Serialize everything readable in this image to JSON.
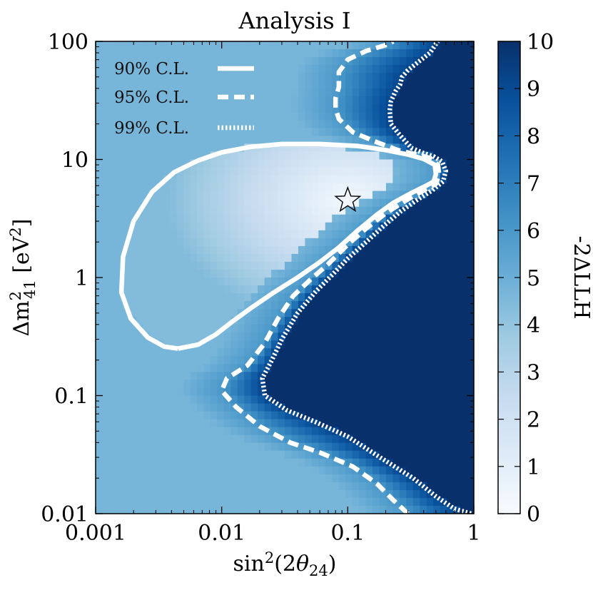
{
  "chart_data": {
    "type": "heatmap",
    "title": "Analysis I",
    "xlabel": {
      "base": "sin",
      "sup": "2",
      "arg_open": "(2",
      "theta": "θ",
      "sub": "24",
      "arg_close": ")"
    },
    "ylabel": {
      "delta": "Δ",
      "m": "m",
      "sup": "2",
      "sub": "41",
      "unit_open": " [eV",
      "unit_sup": "2",
      "unit_close": "]"
    },
    "x_scale": "log",
    "y_scale": "log",
    "xlim": [
      0.001,
      1
    ],
    "ylim": [
      0.01,
      100
    ],
    "x_ticks": [
      {
        "value": 0.001,
        "label": "0.001"
      },
      {
        "value": 0.01,
        "label": "0.01"
      },
      {
        "value": 0.1,
        "label": "0.1"
      },
      {
        "value": 1,
        "label": "1"
      }
    ],
    "y_ticks": [
      {
        "value": 0.01,
        "label": "0.01"
      },
      {
        "value": 0.1,
        "label": "0.1"
      },
      {
        "value": 1,
        "label": "1"
      },
      {
        "value": 10,
        "label": "10"
      },
      {
        "value": 100,
        "label": "100"
      }
    ],
    "colorbar": {
      "label": "-2ΔLLH",
      "range": [
        0,
        10
      ],
      "ticks": [
        "0",
        "1",
        "2",
        "3",
        "4",
        "5",
        "6",
        "7",
        "8",
        "9",
        "10"
      ],
      "colormap": [
        "#f7fbff",
        "#deebf7",
        "#c6dbef",
        "#9ecae1",
        "#6baed6",
        "#4292c6",
        "#2171b5",
        "#08519c",
        "#08306b"
      ]
    },
    "best_fit": {
      "x": 0.1,
      "y": 4.5,
      "marker": "star"
    },
    "legend": {
      "position": "top-left",
      "entries": [
        {
          "label": "90% C.L.",
          "style": "solid"
        },
        {
          "label": "95% C.L.",
          "style": "dashed"
        },
        {
          "label": "99% C.L.",
          "style": "dotted"
        }
      ]
    },
    "contours": [
      {
        "name": "90% C.L.",
        "style": "solid",
        "points": [
          [
            0.0045,
            0.25
          ],
          [
            0.0065,
            0.27
          ],
          [
            0.009,
            0.33
          ],
          [
            0.012,
            0.42
          ],
          [
            0.017,
            0.55
          ],
          [
            0.026,
            0.75
          ],
          [
            0.04,
            1.0
          ],
          [
            0.06,
            1.35
          ],
          [
            0.085,
            1.8
          ],
          [
            0.12,
            2.5
          ],
          [
            0.17,
            3.4
          ],
          [
            0.23,
            4.3
          ],
          [
            0.32,
            5.2
          ],
          [
            0.42,
            6.0
          ],
          [
            0.48,
            6.5
          ],
          [
            0.5,
            7.5
          ],
          [
            0.49,
            9.0
          ],
          [
            0.4,
            10.1
          ],
          [
            0.3,
            11.0
          ],
          [
            0.2,
            12.0
          ],
          [
            0.12,
            13.0
          ],
          [
            0.06,
            13.5
          ],
          [
            0.03,
            13.5
          ],
          [
            0.017,
            12.8
          ],
          [
            0.01,
            11.5
          ],
          [
            0.0065,
            9.8
          ],
          [
            0.0042,
            7.8
          ],
          [
            0.0028,
            5.3
          ],
          [
            0.002,
            3.0
          ],
          [
            0.00165,
            1.5
          ],
          [
            0.0016,
            0.75
          ],
          [
            0.0019,
            0.45
          ],
          [
            0.0026,
            0.31
          ],
          [
            0.0035,
            0.26
          ],
          [
            0.0045,
            0.25
          ]
        ]
      },
      {
        "name": "95% C.L.",
        "style": "dashed",
        "points": [
          [
            0.3,
            0.01
          ],
          [
            0.23,
            0.013
          ],
          [
            0.17,
            0.018
          ],
          [
            0.11,
            0.025
          ],
          [
            0.06,
            0.033
          ],
          [
            0.035,
            0.04
          ],
          [
            0.02,
            0.055
          ],
          [
            0.013,
            0.08
          ],
          [
            0.01,
            0.11
          ],
          [
            0.011,
            0.14
          ],
          [
            0.016,
            0.18
          ],
          [
            0.022,
            0.28
          ],
          [
            0.028,
            0.45
          ],
          [
            0.037,
            0.7
          ],
          [
            0.05,
            0.95
          ],
          [
            0.07,
            1.3
          ],
          [
            0.1,
            1.9
          ],
          [
            0.14,
            2.6
          ],
          [
            0.2,
            3.5
          ],
          [
            0.28,
            4.4
          ],
          [
            0.38,
            5.3
          ],
          [
            0.5,
            6.2
          ],
          [
            0.53,
            7.5
          ],
          [
            0.52,
            9.0
          ],
          [
            0.45,
            10.3
          ],
          [
            0.35,
            11.0
          ],
          [
            0.25,
            12.0
          ],
          [
            0.17,
            14.0
          ],
          [
            0.11,
            17.0
          ],
          [
            0.085,
            22.0
          ],
          [
            0.08,
            27.0
          ],
          [
            0.08,
            33.0
          ],
          [
            0.085,
            41.0
          ],
          [
            0.085,
            55.0
          ],
          [
            0.1,
            70.0
          ],
          [
            0.14,
            83.0
          ],
          [
            0.2,
            93.0
          ],
          [
            0.23,
            100.0
          ]
        ]
      },
      {
        "name": "99% C.L.",
        "style": "dotted",
        "points": [
          [
            0.95,
            0.01
          ],
          [
            0.7,
            0.011
          ],
          [
            0.5,
            0.014
          ],
          [
            0.33,
            0.02
          ],
          [
            0.18,
            0.03
          ],
          [
            0.1,
            0.045
          ],
          [
            0.055,
            0.06
          ],
          [
            0.033,
            0.075
          ],
          [
            0.022,
            0.1
          ],
          [
            0.021,
            0.14
          ],
          [
            0.025,
            0.2
          ],
          [
            0.03,
            0.3
          ],
          [
            0.04,
            0.5
          ],
          [
            0.055,
            0.75
          ],
          [
            0.075,
            1.05
          ],
          [
            0.1,
            1.45
          ],
          [
            0.14,
            2.0
          ],
          [
            0.19,
            2.7
          ],
          [
            0.26,
            3.6
          ],
          [
            0.35,
            4.5
          ],
          [
            0.47,
            5.5
          ],
          [
            0.57,
            6.5
          ],
          [
            0.6,
            8.0
          ],
          [
            0.56,
            9.6
          ],
          [
            0.48,
            10.6
          ],
          [
            0.4,
            11.3
          ],
          [
            0.32,
            12.5
          ],
          [
            0.26,
            16.0
          ],
          [
            0.22,
            20.0
          ],
          [
            0.215,
            26.0
          ],
          [
            0.22,
            31.0
          ],
          [
            0.24,
            38.0
          ],
          [
            0.26,
            43.0
          ],
          [
            0.27,
            50.0
          ],
          [
            0.3,
            57.0
          ],
          [
            0.37,
            68.0
          ],
          [
            0.45,
            80.0
          ],
          [
            0.5,
            95.0
          ],
          [
            0.52,
            100.0
          ]
        ]
      }
    ]
  }
}
